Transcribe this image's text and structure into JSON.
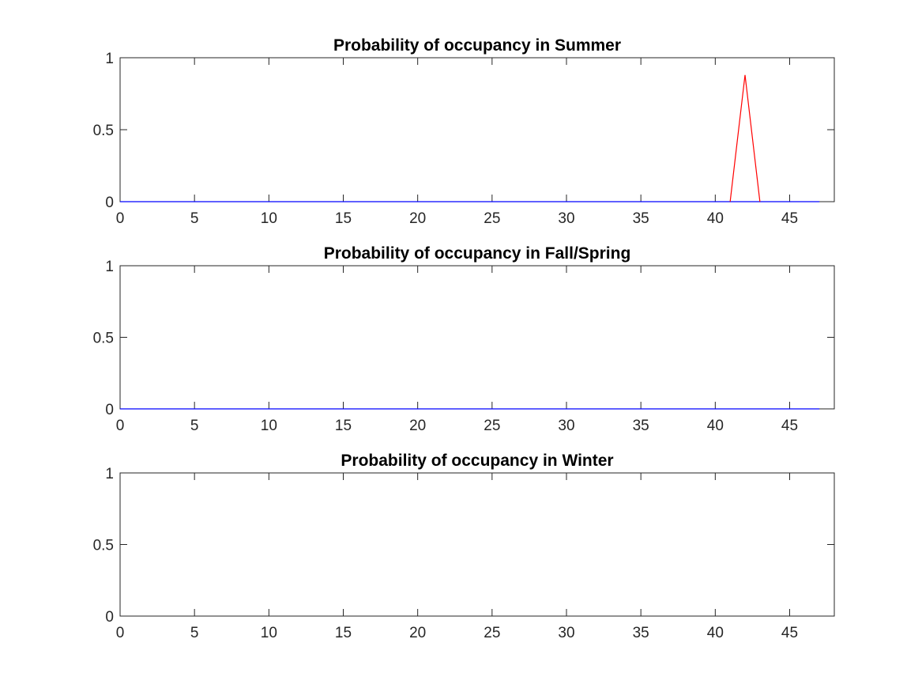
{
  "chart_data": [
    {
      "type": "line",
      "title": "Probability of occupancy in Summer",
      "xlabel": "",
      "ylabel": "",
      "xlim": [
        0,
        48
      ],
      "ylim": [
        0,
        1
      ],
      "xticks": [
        0,
        5,
        10,
        15,
        20,
        25,
        30,
        35,
        40,
        45
      ],
      "yticks": [
        0,
        0.5,
        1
      ],
      "xtick_labels": [
        "0",
        "5",
        "10",
        "15",
        "20",
        "25",
        "30",
        "35",
        "40",
        "45"
      ],
      "ytick_labels": [
        "0",
        "0.5",
        "1"
      ],
      "grid": false,
      "series": [
        {
          "color": "#0000ff",
          "x": [
            0,
            47
          ],
          "y": [
            0,
            0
          ]
        },
        {
          "color": "#ff0000",
          "x": [
            41,
            42,
            43
          ],
          "y": [
            0,
            0.88,
            0
          ]
        }
      ]
    },
    {
      "type": "line",
      "title": "Probability of occupancy in Fall/Spring",
      "xlabel": "",
      "ylabel": "",
      "xlim": [
        0,
        48
      ],
      "ylim": [
        0,
        1
      ],
      "xticks": [
        0,
        5,
        10,
        15,
        20,
        25,
        30,
        35,
        40,
        45
      ],
      "yticks": [
        0,
        0.5,
        1
      ],
      "xtick_labels": [
        "0",
        "5",
        "10",
        "15",
        "20",
        "25",
        "30",
        "35",
        "40",
        "45"
      ],
      "ytick_labels": [
        "0",
        "0.5",
        "1"
      ],
      "grid": false,
      "series": [
        {
          "color": "#0000ff",
          "x": [
            0,
            47
          ],
          "y": [
            0,
            0
          ]
        }
      ]
    },
    {
      "type": "line",
      "title": "Probability of occupancy in Winter",
      "xlabel": "",
      "ylabel": "",
      "xlim": [
        0,
        48
      ],
      "ylim": [
        0,
        1
      ],
      "xticks": [
        0,
        5,
        10,
        15,
        20,
        25,
        30,
        35,
        40,
        45
      ],
      "yticks": [
        0,
        0.5,
        1
      ],
      "xtick_labels": [
        "0",
        "5",
        "10",
        "15",
        "20",
        "25",
        "30",
        "35",
        "40",
        "45"
      ],
      "ytick_labels": [
        "0",
        "0.5",
        "1"
      ],
      "grid": false,
      "series": []
    }
  ]
}
